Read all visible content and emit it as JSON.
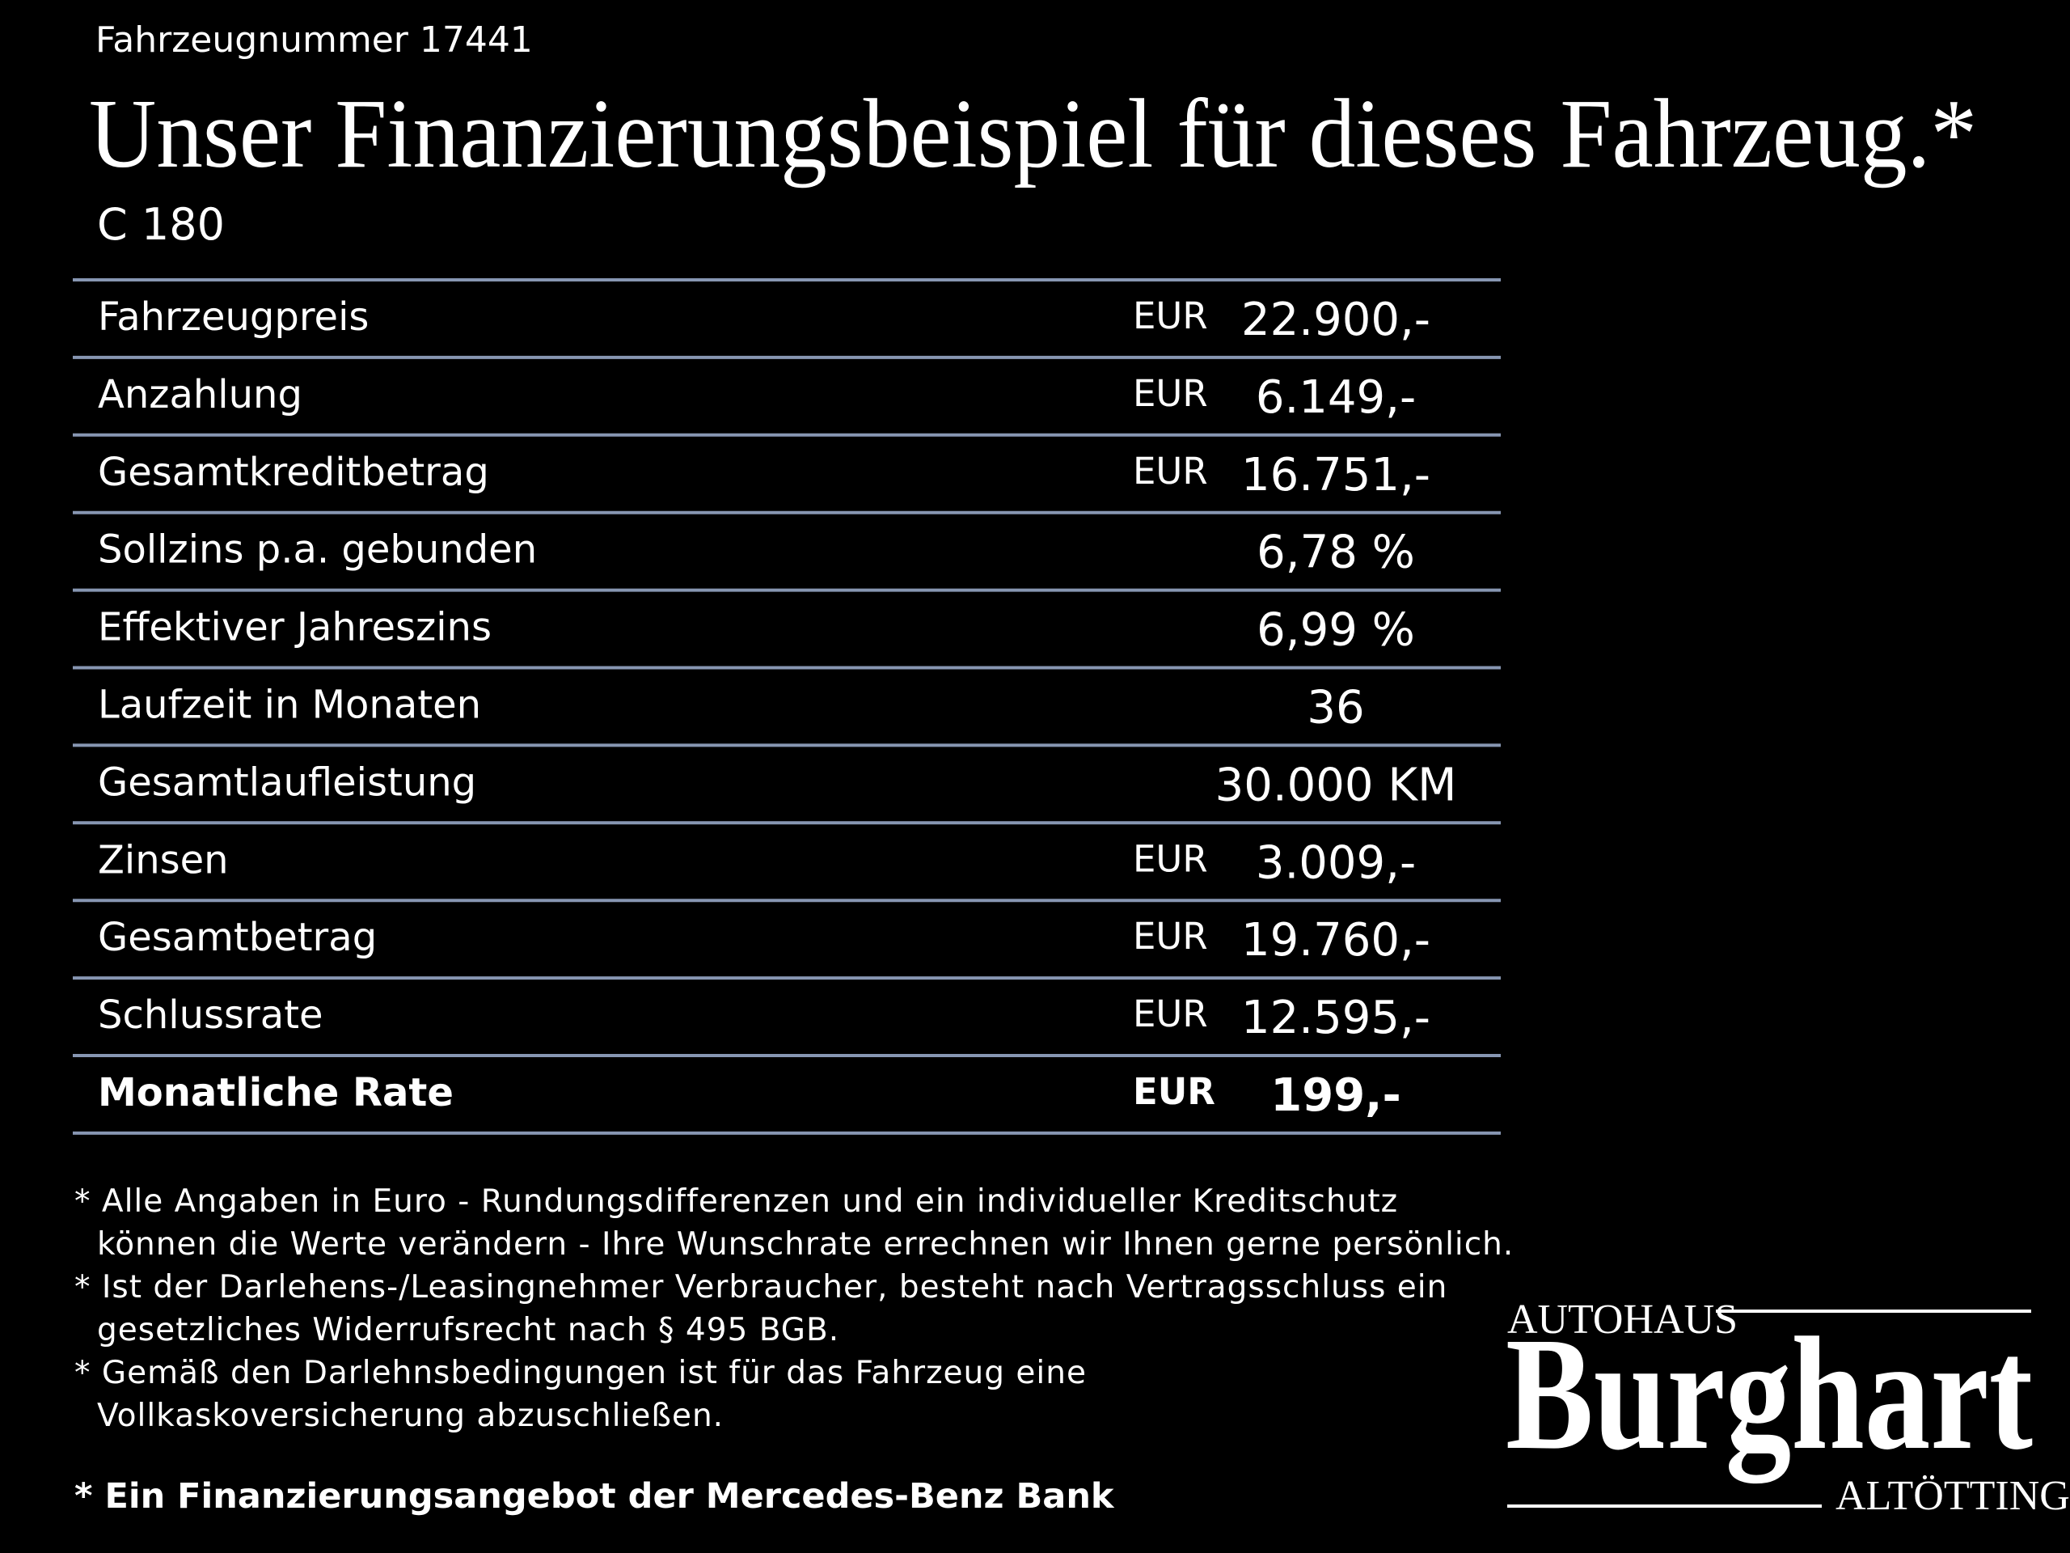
{
  "header": {
    "vehicle_number": "Fahrzeugnummer 17441",
    "title": "Unser Finanzierungsbeispiel für dieses Fahrzeug.*",
    "model": "C 180"
  },
  "table": {
    "rows": [
      {
        "label": "Fahrzeugpreis",
        "currency": "EUR",
        "value": "22.900,-"
      },
      {
        "label": "Anzahlung",
        "currency": "EUR",
        "value": "6.149,-"
      },
      {
        "label": "Gesamtkreditbetrag",
        "currency": "EUR",
        "value": "16.751,-"
      },
      {
        "label": "Sollzins p.a. gebunden",
        "value": "6,78 %"
      },
      {
        "label": "Effektiver Jahreszins",
        "value": "6,99 %"
      },
      {
        "label": "Laufzeit in Monaten",
        "value": "36"
      },
      {
        "label": "Gesamtlaufleistung",
        "value": "30.000 KM"
      },
      {
        "label": "Zinsen",
        "currency": "EUR",
        "value": "3.009,-"
      },
      {
        "label": "Gesamtbetrag",
        "currency": "EUR",
        "value": "19.760,-"
      },
      {
        "label": "Schlussrate",
        "currency": "EUR",
        "value": "12.595,-"
      },
      {
        "label": "Monatliche Rate",
        "currency": "EUR",
        "value": "199,-",
        "bold": true
      }
    ]
  },
  "footnotes": [
    {
      "lines": [
        "* Alle Angaben in Euro - Rundungsdifferenzen und ein individueller Kreditschutz",
        "können die Werte verändern - Ihre Wunschrate errechnen wir Ihnen gerne persönlich."
      ]
    },
    {
      "lines": [
        "* Ist der Darlehens-/Leasingnehmer Verbraucher, besteht nach Vertragsschluss ein",
        "gesetzliches Widerrufsrecht nach § 495 BGB."
      ]
    },
    {
      "lines": [
        "* Gemäß den Darlehnsbedingungen ist für das Fahrzeug eine",
        "Vollkaskoversicherung abzuschließen."
      ]
    }
  ],
  "bank_note": "* Ein Finanzierungsangebot der Mercedes-Benz Bank",
  "logo": {
    "top": "Autohaus",
    "name": "Burghart",
    "bottom": "Altötting"
  }
}
